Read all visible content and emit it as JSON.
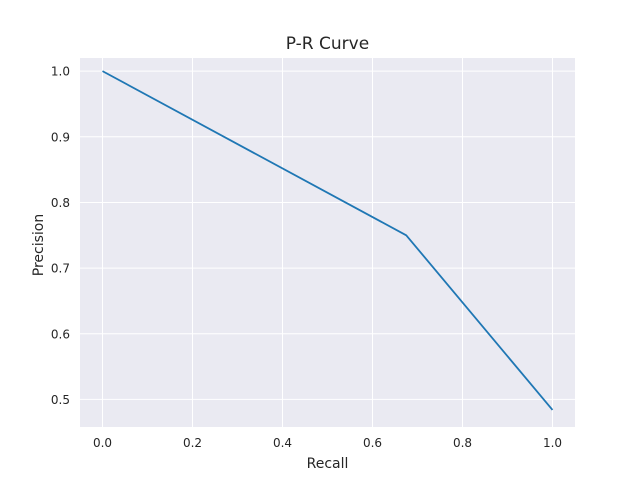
{
  "chart_data": {
    "type": "line",
    "title": "P-R Curve",
    "xlabel": "Recall",
    "ylabel": "Precision",
    "xlim": [
      -0.05,
      1.05
    ],
    "ylim": [
      0.458,
      1.02
    ],
    "xticks": [
      0.0,
      0.2,
      0.4,
      0.6,
      0.8,
      1.0
    ],
    "xtick_labels": [
      "0.0",
      "0.2",
      "0.4",
      "0.6",
      "0.8",
      "1.0"
    ],
    "yticks": [
      0.5,
      0.6,
      0.7,
      0.8,
      0.9,
      1.0
    ],
    "ytick_labels": [
      "0.5",
      "0.6",
      "0.7",
      "0.8",
      "0.9",
      "1.0"
    ],
    "grid": true,
    "series": [
      {
        "x": [
          0.0,
          0.675,
          1.0
        ],
        "y": [
          1.0,
          0.75,
          0.484
        ]
      }
    ],
    "colors": {
      "line": "#1f77b4",
      "plot_background": "#eaeaf2",
      "grid": "#ffffff"
    }
  }
}
